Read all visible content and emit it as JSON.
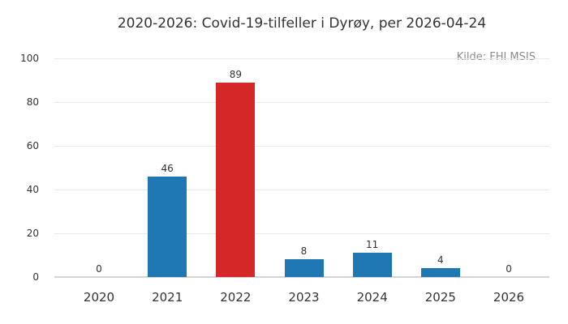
{
  "chart_data": {
    "type": "bar",
    "title": "2020-2026: Covid-19-tilfeller i Dyrøy, per 2026-04-24",
    "source_note": "Kilde: FHI MSIS",
    "categories": [
      "2020",
      "2021",
      "2022",
      "2023",
      "2024",
      "2025",
      "2026"
    ],
    "values": [
      0,
      46,
      89,
      8,
      11,
      4,
      0
    ],
    "value_labels": [
      "0",
      "46",
      "89",
      "8",
      "11",
      "4",
      "0"
    ],
    "bar_colors": [
      "#1f77b4",
      "#1f77b4",
      "#d62728",
      "#1f77b4",
      "#1f77b4",
      "#1f77b4",
      "#1f77b4"
    ],
    "xlabel": "",
    "ylabel": "",
    "ylim": [
      0,
      100
    ],
    "yticks": [
      0,
      20,
      40,
      60,
      80,
      100
    ],
    "grid": "horizontal",
    "legend": "none",
    "colors": {
      "default_bar": "#1f77b4",
      "highlight_bar": "#d62728",
      "gridline": "#e9e9e9",
      "baseline": "#d4d4d4",
      "text": "#333333",
      "source_text": "#8c8c8c",
      "background": "#ffffff"
    }
  }
}
